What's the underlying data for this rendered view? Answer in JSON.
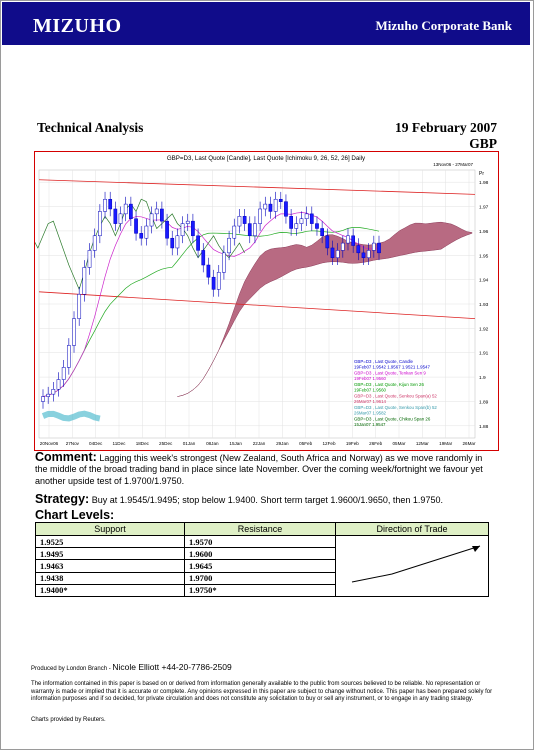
{
  "header": {
    "logo": "MIZUHO",
    "bank": "Mizuho Corporate Bank"
  },
  "report": {
    "section": "Technical Analysis",
    "date": "19 February 2007",
    "currency": "GBP"
  },
  "chart_data": {
    "type": "line",
    "title": "GBP=D3, Last Quote [Candle], Last Quote [Ichimoku 9, 26, 52, 26] Daily",
    "range_label": "13Nov06 - 27Mar07",
    "unit_label": "Pr",
    "x_ticks": [
      "20Nov06",
      "27Nov",
      "04Dec",
      "11Dec",
      "18Dec",
      "25Dec",
      "01Jan",
      "08Jan",
      "15Jan",
      "22Jan",
      "29Jan",
      "05Feb",
      "12Feb",
      "19Feb",
      "26Feb",
      "05Mar",
      "12Mar",
      "19Mar",
      "26Mar"
    ],
    "y_ticks": [
      "1.98",
      "1.97",
      "1.96",
      "1.95",
      "1.94",
      "1.93",
      "1.92",
      "1.91",
      "1.9",
      "1.89",
      "1.88"
    ],
    "ylim": [
      1.875,
      1.985
    ],
    "closes": [
      1.892,
      1.893,
      1.895,
      1.899,
      1.904,
      1.913,
      1.924,
      1.934,
      1.945,
      1.952,
      1.958,
      1.968,
      1.973,
      1.969,
      1.963,
      1.967,
      1.971,
      1.965,
      1.959,
      1.957,
      1.962,
      1.967,
      1.969,
      1.964,
      1.957,
      1.953,
      1.958,
      1.963,
      1.964,
      1.958,
      1.952,
      1.946,
      1.941,
      1.936,
      1.943,
      1.951,
      1.957,
      1.962,
      1.966,
      1.963,
      1.958,
      1.963,
      1.969,
      1.971,
      1.968,
      1.973,
      1.972,
      1.966,
      1.961,
      1.963,
      1.965,
      1.967,
      1.963,
      1.961,
      1.958,
      1.953,
      1.949,
      1.952,
      1.955,
      1.958,
      1.954,
      1.951,
      1.949,
      1.952,
      1.955,
      1.951
    ],
    "legend": [
      {
        "name": "GBP=D3 , Last Quote, Candle",
        "value": "19Feb07 1.9542 1.9567 1.9521 1.9547",
        "color": "#0000cc"
      },
      {
        "name": "GBP=D3 , Last Quote, Tenkan Sen 9",
        "value": "19Feb07 1.9560",
        "color": "#cc00cc"
      },
      {
        "name": "GBP=D3 , Last Quote, Kijun Sen 26",
        "value": "19Feb07 1.9560",
        "color": "#009900"
      },
      {
        "name": "GBP=D3 , Last Quote, Senkou Span(a) 52",
        "value": "26Mar07 1.9614",
        "color": "#cc3366"
      },
      {
        "name": "GBP=D3 , Last Quote, Senkou Span(b) 52",
        "value": "26Mar07 1.9582",
        "color": "#3399aa"
      },
      {
        "name": "GBP=D3 , Last Quote, Chikou Span 26",
        "value": "15Jan07 1.9547",
        "color": "#006600"
      }
    ],
    "trendlines": [
      {
        "from": [
          0,
          1.981
        ],
        "to": [
          1,
          1.975
        ]
      },
      {
        "from": [
          0,
          1.935
        ],
        "to": [
          1,
          1.924
        ]
      }
    ]
  },
  "commentary": {
    "heading": "Comment:",
    "text": "Lagging this week's strongest (New Zealand, South Africa and Norway) as we move randomly in the middle of the broad trading band in place since late November.  Over the coming week/fortnight we favour yet another upside test of 1.9700/1.9750."
  },
  "strategy": {
    "heading": "Strategy:",
    "text": "Buy at 1.9545/1.9495; stop below 1.9400.  Short term target 1.9600/1.9650, then 1.9750."
  },
  "levels": {
    "heading": "Chart Levels:",
    "columns": [
      "Support",
      "Resistance",
      "Direction of Trade"
    ],
    "rows": [
      [
        "1.9525",
        "1.9570"
      ],
      [
        "1.9495",
        "1.9600"
      ],
      [
        "1.9463",
        "1.9645"
      ],
      [
        "1.9438",
        "1.9700"
      ],
      [
        "1.9400*",
        "1.9750*"
      ]
    ]
  },
  "footer": {
    "produced": "Produced by London Branch - ",
    "name": "Nicole Elliott +44-20-7786-2509",
    "disclaimer": "The information contained in this paper is based on or derived from information generally available to the public from sources believed to be reliable.  No representation or warranty is made or implied that it is accurate or complete.  Any opinions expressed in this paper are subject to change without notice.  This paper has been prepared solely for information purposes and if so decided, for private circulation and does not constitute any solicitation to buy or sell any instrument, or to engage in any trading strategy.",
    "provider": "Charts provided by Reuters."
  }
}
